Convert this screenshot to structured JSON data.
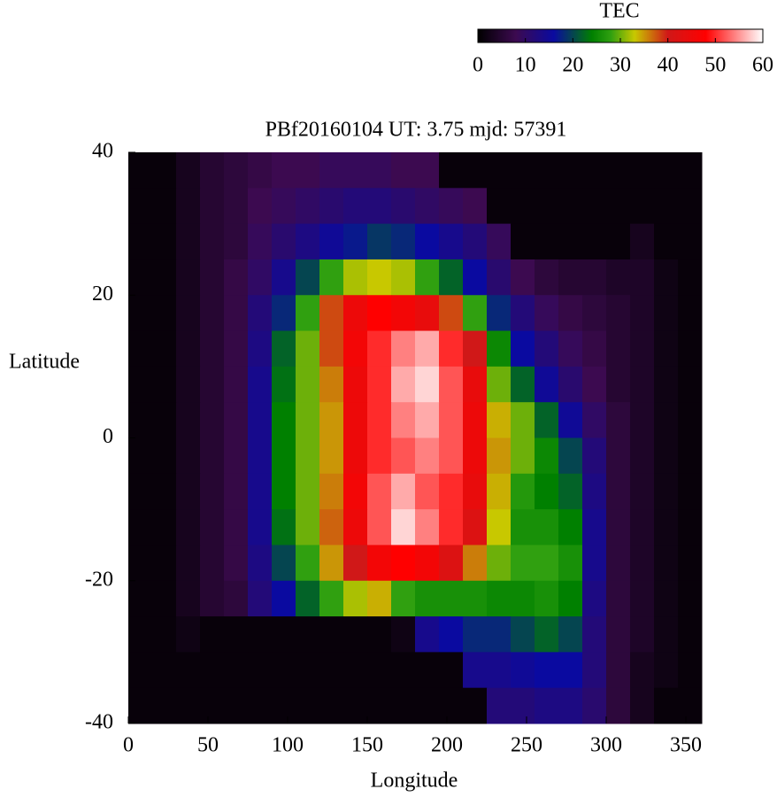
{
  "chart_data": {
    "type": "heatmap",
    "title": "PBf20160104  UT: 3.75  mjd: 57391",
    "xlabel": "Longitude",
    "ylabel": "Latitude",
    "x": [
      7.5,
      22.5,
      37.5,
      52.5,
      67.5,
      82.5,
      97.5,
      112.5,
      127.5,
      142.5,
      157.5,
      172.5,
      187.5,
      202.5,
      217.5,
      232.5,
      247.5,
      262.5,
      277.5,
      292.5,
      307.5,
      322.5,
      337.5,
      352.5
    ],
    "y": [
      37.5,
      32.5,
      27.5,
      22.5,
      17.5,
      12.5,
      7.5,
      2.5,
      -2.5,
      -7.5,
      -12.5,
      -17.5,
      -22.5,
      -27.5,
      -32.5,
      -37.5
    ],
    "values": [
      [
        1,
        1,
        3,
        5,
        6,
        7,
        8,
        8,
        9,
        9,
        9,
        8,
        8,
        1,
        1,
        1,
        1,
        1,
        1,
        1,
        1,
        1,
        1,
        1
      ],
      [
        1,
        1,
        3,
        5,
        6,
        8,
        9,
        10,
        11,
        12,
        12,
        11,
        10,
        9,
        8,
        1,
        1,
        1,
        1,
        1,
        1,
        1,
        1,
        1
      ],
      [
        1,
        1,
        3,
        5,
        6,
        9,
        11,
        13,
        15,
        17,
        19,
        18,
        16,
        14,
        12,
        9,
        1,
        1,
        1,
        1,
        1,
        3,
        1,
        1
      ],
      [
        1,
        1,
        3,
        5,
        7,
        10,
        14,
        20,
        28,
        32,
        33,
        32,
        28,
        22,
        16,
        11,
        8,
        6,
        5,
        5,
        4,
        4,
        2,
        1
      ],
      [
        1,
        1,
        3,
        5,
        7,
        12,
        18,
        28,
        38,
        45,
        48,
        46,
        44,
        38,
        28,
        18,
        12,
        9,
        7,
        6,
        5,
        4,
        2,
        1
      ],
      [
        1,
        1,
        3,
        5,
        7,
        13,
        22,
        30,
        38,
        46,
        50,
        54,
        56,
        50,
        40,
        25,
        16,
        12,
        9,
        7,
        5,
        4,
        2,
        1
      ],
      [
        1,
        1,
        3,
        5,
        7,
        14,
        23,
        30,
        36,
        45,
        50,
        56,
        58,
        52,
        44,
        30,
        22,
        15,
        11,
        8,
        5,
        4,
        2,
        1
      ],
      [
        1,
        1,
        3,
        5,
        7,
        14,
        24,
        30,
        35,
        45,
        50,
        54,
        56,
        52,
        45,
        34,
        30,
        22,
        15,
        10,
        6,
        4,
        2,
        1
      ],
      [
        1,
        1,
        3,
        5,
        7,
        14,
        24,
        30,
        35,
        45,
        50,
        52,
        54,
        52,
        45,
        35,
        30,
        25,
        20,
        12,
        6,
        4,
        2,
        1
      ],
      [
        1,
        1,
        3,
        5,
        7,
        14,
        24,
        30,
        36,
        46,
        52,
        56,
        52,
        50,
        44,
        34,
        27,
        24,
        22,
        13,
        6,
        4,
        2,
        1
      ],
      [
        1,
        1,
        3,
        5,
        7,
        14,
        23,
        30,
        37,
        45,
        52,
        58,
        54,
        50,
        42,
        33,
        26,
        26,
        24,
        14,
        6,
        4,
        2,
        1
      ],
      [
        1,
        1,
        3,
        5,
        7,
        13,
        20,
        28,
        35,
        40,
        46,
        48,
        46,
        42,
        36,
        30,
        28,
        28,
        26,
        14,
        6,
        4,
        2,
        1
      ],
      [
        1,
        1,
        3,
        5,
        6,
        12,
        16,
        22,
        28,
        32,
        34,
        28,
        26,
        26,
        26,
        25,
        25,
        26,
        24,
        13,
        6,
        4,
        2,
        1
      ],
      [
        1,
        1,
        2,
        1,
        1,
        1,
        1,
        1,
        1,
        1,
        1,
        2,
        14,
        16,
        18,
        18,
        20,
        22,
        20,
        12,
        6,
        4,
        2,
        1
      ],
      [
        1,
        1,
        1,
        1,
        1,
        1,
        1,
        1,
        1,
        1,
        1,
        1,
        1,
        1,
        14,
        14,
        15,
        16,
        16,
        12,
        6,
        3,
        2,
        1
      ],
      [
        1,
        1,
        1,
        1,
        1,
        1,
        1,
        1,
        1,
        1,
        1,
        1,
        1,
        1,
        1,
        12,
        12,
        13,
        13,
        11,
        6,
        3,
        1,
        1
      ]
    ],
    "xlim": [
      0,
      360
    ],
    "ylim": [
      -40,
      40
    ],
    "xticks": [
      0,
      50,
      100,
      150,
      200,
      250,
      300,
      350
    ],
    "yticks": [
      40,
      20,
      0,
      -20,
      -40
    ],
    "colormap": [
      [
        0,
        "#000000"
      ],
      [
        8,
        "#3c0a50"
      ],
      [
        16,
        "#0a0aa0"
      ],
      [
        24,
        "#008000"
      ],
      [
        28,
        "#30a010"
      ],
      [
        33,
        "#c8c800"
      ],
      [
        40,
        "#d01818"
      ],
      [
        48,
        "#ff0000"
      ],
      [
        60,
        "#ffffff"
      ]
    ],
    "colorbar": {
      "title": "TEC",
      "lim": [
        0,
        60
      ],
      "ticks": [
        0,
        10,
        20,
        30,
        40,
        50,
        60
      ]
    }
  }
}
